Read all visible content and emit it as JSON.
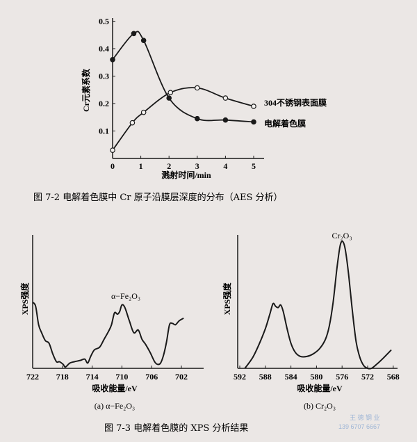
{
  "chart_data": [
    {
      "type": "line",
      "caption": "图 7-2   电解着色膜中 Cr 原子沿膜层深度的分布（AES 分析）",
      "xlabel": "溅射时间/min",
      "ylabel": "Cr元素系数",
      "xlim": [
        0,
        5
      ],
      "ylim": [
        0,
        0.5
      ],
      "xticks": [
        "0",
        "1",
        "2",
        "3",
        "4",
        "5"
      ],
      "yticks": [
        "0.1",
        "0.2",
        "0.3",
        "0.4",
        "0.5"
      ],
      "series": [
        {
          "name": "304不锈钢表面膜",
          "marker": "open-circle",
          "x": [
            0,
            0.7,
            1.1,
            2.05,
            3,
            4,
            5
          ],
          "y": [
            0.03,
            0.13,
            0.168,
            0.24,
            0.257,
            0.22,
            0.19
          ]
        },
        {
          "name": "电解着色膜",
          "marker": "filled-circle",
          "x": [
            0,
            0.75,
            1.1,
            2,
            3,
            4,
            5
          ],
          "y": [
            0.36,
            0.455,
            0.43,
            0.22,
            0.145,
            0.14,
            0.133
          ]
        }
      ]
    },
    {
      "type": "line",
      "subcaption": "(a) α−Fe₂O₃",
      "xlabel": "吸收能量/eV",
      "ylabel": "XPS强度",
      "annotation": "α−Fe₂O₃",
      "xlim": [
        722,
        700.5
      ],
      "xticks": [
        "722",
        "718",
        "714",
        "710",
        "706",
        "702"
      ],
      "series": [
        {
          "name": "α−Fe₂O₃",
          "x": [
            722,
            721.6,
            721.2,
            720.8,
            720.3,
            719.8,
            719.3,
            718.8,
            718.4,
            717.9,
            717.6,
            717,
            716.4,
            715.6,
            715,
            714.6,
            714.2,
            713.7,
            713,
            712.4,
            711.8,
            711.4,
            711,
            710.6,
            710.3,
            710,
            709.6,
            709,
            708.4,
            707.8,
            707.3,
            706.8,
            706.2,
            705.6,
            705.2,
            704.8,
            704.4,
            704,
            703.6,
            703.2,
            702.8,
            702.3,
            701.7
          ],
          "y": [
            0.5,
            0.47,
            0.33,
            0.27,
            0.21,
            0.19,
            0.11,
            0.05,
            0.05,
            0.03,
            0.01,
            0.04,
            0.05,
            0.06,
            0.07,
            0.04,
            0.09,
            0.14,
            0.16,
            0.22,
            0.28,
            0.33,
            0.42,
            0.41,
            0.43,
            0.48,
            0.46,
            0.36,
            0.27,
            0.29,
            0.22,
            0.18,
            0.12,
            0.05,
            0.03,
            0.04,
            0.1,
            0.2,
            0.33,
            0.34,
            0.33,
            0.36,
            0.38
          ]
        }
      ]
    },
    {
      "type": "line",
      "subcaption": "(b) Cr₂O₃",
      "xlabel": "吸收能量/eV",
      "ylabel": "XPS强度",
      "annotation": "Cr₂O₃",
      "xlim": [
        592,
        567.5
      ],
      "xticks": [
        "592",
        "588",
        "584",
        "580",
        "576",
        "572",
        "568"
      ],
      "series": [
        {
          "name": "Cr₂O₃",
          "x": [
            591.2,
            590,
            589,
            588,
            587.3,
            586.8,
            586.4,
            586,
            585.6,
            585.2,
            584.6,
            584,
            583.3,
            582.5,
            581.5,
            580.5,
            579.5,
            578.6,
            578,
            577.4,
            576.8,
            576.3,
            575.9,
            575.5,
            575,
            574.4,
            573.8,
            573.2,
            572.6,
            572,
            571.4,
            570.6,
            569.5,
            568.3
          ],
          "y": [
            0,
            0.08,
            0.18,
            0.3,
            0.41,
            0.49,
            0.47,
            0.46,
            0.48,
            0.43,
            0.3,
            0.19,
            0.12,
            0.09,
            0.09,
            0.11,
            0.15,
            0.22,
            0.32,
            0.5,
            0.76,
            0.93,
            0.96,
            0.9,
            0.72,
            0.44,
            0.2,
            0.08,
            0.02,
            0,
            0,
            0.03,
            0.08,
            0.14
          ]
        }
      ]
    }
  ],
  "captions": {
    "fig73": "图 7-3    电解着色膜的 XPS 分析结果"
  },
  "watermark": {
    "line1": "王 德 钢 业",
    "line2": "139 6707 6667"
  },
  "colors": {
    "ink": "#1a1a1a",
    "paper": "#ebe7e5",
    "watermark": "#9fb6d6"
  }
}
